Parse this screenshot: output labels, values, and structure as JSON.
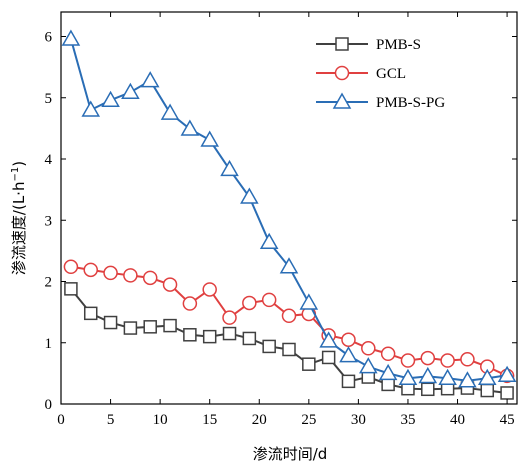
{
  "chart_data": {
    "type": "line",
    "xlabel": "渗流时间/d",
    "ylabel_main": "渗流速度/(L·h",
    "ylabel_sup": "−1",
    "ylabel_close": ")",
    "xlim": [
      0,
      46
    ],
    "ylim": [
      0,
      6.4
    ],
    "xticks": [
      0,
      5,
      10,
      15,
      20,
      25,
      30,
      35,
      40,
      45
    ],
    "yticks": [
      0,
      1,
      2,
      3,
      4,
      5,
      6
    ],
    "grid": false,
    "legend_position": "top-right",
    "series": [
      {
        "name": "PMB-S",
        "marker": "square",
        "line_color": "#404040",
        "marker_color": "#404040",
        "x": [
          1,
          3,
          5,
          7,
          9,
          11,
          13,
          15,
          17,
          19,
          21,
          23,
          25,
          27,
          29,
          31,
          33,
          35,
          37,
          39,
          41,
          43,
          45
        ],
        "y": [
          1.88,
          1.48,
          1.33,
          1.24,
          1.26,
          1.28,
          1.13,
          1.1,
          1.15,
          1.07,
          0.94,
          0.89,
          0.65,
          0.76,
          0.37,
          0.44,
          0.32,
          0.25,
          0.24,
          0.25,
          0.26,
          0.22,
          0.18
        ]
      },
      {
        "name": "GCL",
        "marker": "circle",
        "line_color": "#e04040",
        "marker_color": "#e04040",
        "x": [
          1,
          3,
          5,
          7,
          9,
          11,
          13,
          15,
          17,
          19,
          21,
          23,
          25,
          27,
          29,
          31,
          33,
          35,
          37,
          39,
          41,
          43,
          45
        ],
        "y": [
          2.24,
          2.19,
          2.14,
          2.1,
          2.06,
          1.95,
          1.64,
          1.87,
          1.41,
          1.65,
          1.7,
          1.44,
          1.47,
          1.12,
          1.05,
          0.91,
          0.82,
          0.71,
          0.75,
          0.71,
          0.73,
          0.61,
          0.46
        ]
      },
      {
        "name": "PMB-S-PG",
        "marker": "triangle",
        "line_color": "#2a6db5",
        "marker_color": "#2a6db5",
        "x": [
          1,
          3,
          5,
          7,
          9,
          11,
          13,
          15,
          17,
          19,
          21,
          23,
          25,
          27,
          29,
          31,
          33,
          35,
          37,
          39,
          41,
          43,
          45
        ],
        "y": [
          5.96,
          4.8,
          4.96,
          5.09,
          5.28,
          4.75,
          4.49,
          4.31,
          3.83,
          3.38,
          2.64,
          2.24,
          1.65,
          1.03,
          0.79,
          0.61,
          0.5,
          0.42,
          0.45,
          0.42,
          0.38,
          0.42,
          0.47
        ]
      }
    ]
  }
}
